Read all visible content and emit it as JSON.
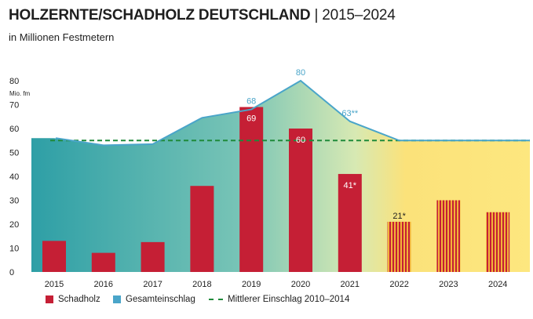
{
  "header": {
    "title_bold": "HOLZERNTE/SCHADHOLZ DEUTSCHLAND",
    "title_sep": "|",
    "title_years": "2015–2024",
    "subtitle": "in Millionen Festmetern"
  },
  "chart_data": {
    "type": "bar",
    "unit_label": "Mio. fm",
    "categories": [
      "2015",
      "2016",
      "2017",
      "2018",
      "2019",
      "2020",
      "2021",
      "2022",
      "2023",
      "2024"
    ],
    "ylim": [
      0,
      80
    ],
    "yticks": [
      0,
      10,
      20,
      30,
      40,
      50,
      60,
      70,
      80
    ],
    "series": [
      {
        "name": "Schadholz",
        "kind": "bar",
        "color": "#c51f35",
        "values": [
          13,
          8,
          12.5,
          36,
          69,
          60,
          41,
          21,
          30,
          25
        ],
        "estimated": [
          false,
          false,
          false,
          false,
          false,
          false,
          false,
          true,
          true,
          true
        ],
        "labels": [
          "",
          "",
          "",
          "",
          "69",
          "60",
          "41*",
          "21*",
          "",
          ""
        ]
      },
      {
        "name": "Gesamteinschlag",
        "kind": "line",
        "color": "#4aa5c9",
        "values": [
          56,
          53,
          53.5,
          64.5,
          68,
          80,
          63,
          55,
          55,
          55
        ],
        "labels": [
          "",
          "",
          "",
          "",
          "68",
          "80",
          "63**",
          "",
          "",
          ""
        ]
      },
      {
        "name": "Mittlerer Einschlag 2010–2014",
        "kind": "reference-line",
        "color": "#1f8a3a",
        "value": 55
      }
    ],
    "area_fill": "gradient teal (left) to yellow (right) under Gesamteinschlag",
    "legend_position": "bottom-left",
    "grid": false
  }
}
